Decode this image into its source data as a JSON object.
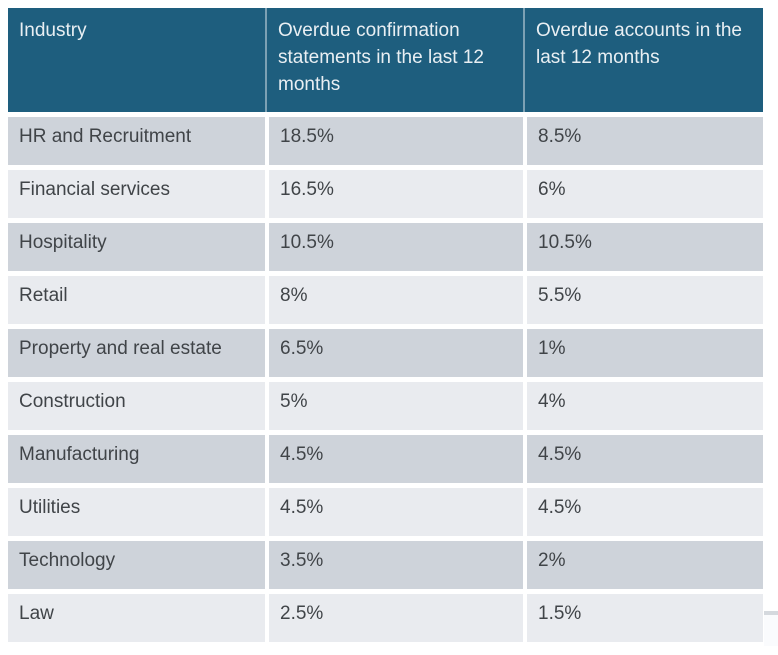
{
  "table": {
    "columns": [
      "Industry",
      "Overdue confirmation statements in the last 12 months",
      "Overdue accounts in the last 12 months"
    ],
    "rows": [
      {
        "industry": "HR and Recruitment",
        "statements": "18.5%",
        "accounts": "8.5%"
      },
      {
        "industry": "Financial services",
        "statements": "16.5%",
        "accounts": "6%"
      },
      {
        "industry": "Hospitality",
        "statements": "10.5%",
        "accounts": "10.5%"
      },
      {
        "industry": "Retail",
        "statements": "8%",
        "accounts": "5.5%"
      },
      {
        "industry": "Property and real estate",
        "statements": "6.5%",
        "accounts": "1%"
      },
      {
        "industry": "Construction",
        "statements": "5%",
        "accounts": "4%"
      },
      {
        "industry": "Manufacturing",
        "statements": "4.5%",
        "accounts": "4.5%"
      },
      {
        "industry": "Utilities",
        "statements": "4.5%",
        "accounts": "4.5%"
      },
      {
        "industry": "Technology",
        "statements": "3.5%",
        "accounts": "2%"
      },
      {
        "industry": "Law",
        "statements": "2.5%",
        "accounts": "1.5%"
      }
    ]
  },
  "colors": {
    "header_bg": "#1E5E7E",
    "header_text": "#E9EFF3",
    "header_divider": "rgba(255,255,255,0.42)",
    "row_dark": "#CED3DA",
    "row_light": "#E9EBEF",
    "body_text": "#404448",
    "separator": "#FFFFFF"
  },
  "chart_data": {
    "type": "table",
    "columns": [
      "Industry",
      "Overdue confirmation statements in the last 12 months",
      "Overdue accounts in the last 12 months"
    ],
    "categories": [
      "HR and Recruitment",
      "Financial services",
      "Hospitality",
      "Retail",
      "Property and real estate",
      "Construction",
      "Manufacturing",
      "Utilities",
      "Technology",
      "Law"
    ],
    "series": [
      {
        "name": "Overdue confirmation statements in the last 12 months",
        "values": [
          18.5,
          16.5,
          10.5,
          8,
          6.5,
          5,
          4.5,
          4.5,
          3.5,
          2.5
        ]
      },
      {
        "name": "Overdue accounts in the last 12 months",
        "values": [
          8.5,
          6,
          10.5,
          5.5,
          1,
          4,
          4.5,
          4.5,
          2,
          1.5
        ]
      }
    ],
    "unit": "%",
    "legend_position": "none",
    "grid": false
  }
}
